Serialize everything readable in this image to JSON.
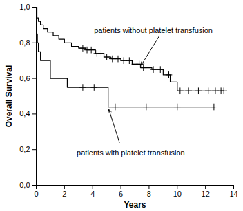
{
  "chart_data": {
    "type": "line",
    "x_label": "Years",
    "y_label": "Overall Survival",
    "xlim": [
      0,
      14
    ],
    "xticks": [
      0,
      2,
      4,
      6,
      8,
      10,
      12,
      14
    ],
    "ylim": [
      0,
      1
    ],
    "yticks": [
      {
        "value": 0,
        "label": "0,0"
      },
      {
        "value": 0.2,
        "label": "0,2"
      },
      {
        "value": 0.4,
        "label": "0,4"
      },
      {
        "value": 0.6,
        "label": "0,6"
      },
      {
        "value": 0.8,
        "label": "0,8"
      },
      {
        "value": 1,
        "label": "1,0"
      }
    ],
    "series": [
      {
        "name": "patients without platelet transfusion",
        "color": "#000000",
        "line_style": "step",
        "marker": "plus",
        "x": [
          0,
          0.05,
          0.15,
          0.3,
          0.5,
          0.8,
          1.2,
          1.6,
          2.0,
          2.5,
          3.0,
          3.5,
          4.2,
          4.8,
          5.3,
          6.0,
          6.8,
          7.4,
          8.2,
          9.0,
          9.5,
          10.0,
          13.3
        ],
        "values": [
          1.0,
          0.94,
          0.92,
          0.9,
          0.88,
          0.86,
          0.84,
          0.82,
          0.8,
          0.78,
          0.77,
          0.76,
          0.74,
          0.72,
          0.71,
          0.7,
          0.68,
          0.66,
          0.65,
          0.62,
          0.58,
          0.53,
          0.53
        ],
        "censored": [
          3.3,
          3.6,
          3.9,
          4.3,
          4.6,
          5.0,
          5.4,
          5.8,
          6.2,
          6.6,
          7.0,
          7.3,
          7.6,
          8.3,
          8.8,
          9.4,
          10.2,
          10.8,
          11.5,
          12.2,
          12.7,
          13.1,
          13.3
        ]
      },
      {
        "name": "patients with platelet transfusion",
        "color": "#000000",
        "line_style": "step",
        "marker": "plus",
        "x": [
          0,
          0.03,
          0.08,
          0.15,
          0.3,
          1.0,
          2.2,
          5.1,
          12.7
        ],
        "values": [
          1.0,
          0.85,
          0.8,
          0.75,
          0.7,
          0.6,
          0.55,
          0.44,
          0.44
        ],
        "censored": [
          3.3,
          4.1,
          5.6,
          7.8,
          10.0,
          12.6
        ]
      }
    ]
  }
}
